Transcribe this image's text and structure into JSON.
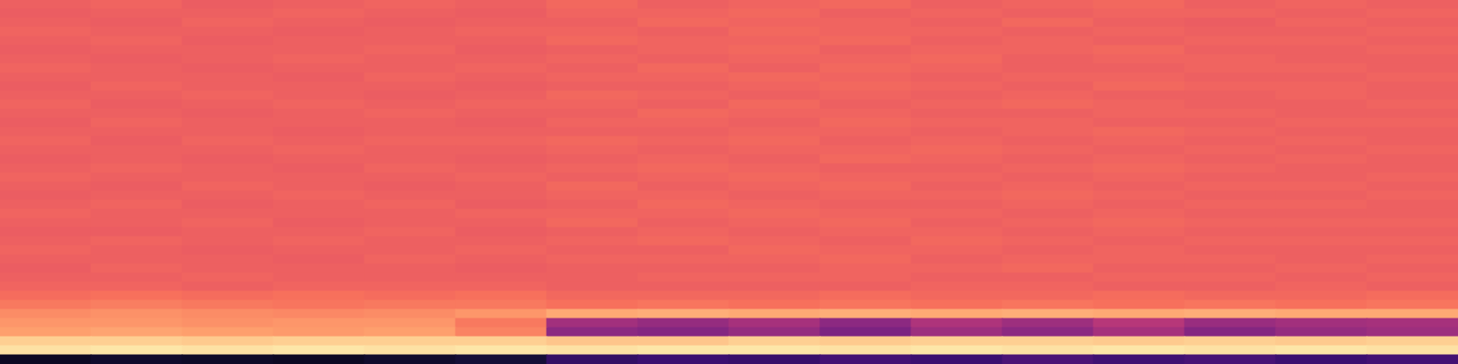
{
  "chart_data": {
    "type": "heatmap",
    "tick_labels": false,
    "color_range": [
      0,
      1
    ],
    "cells": [
      [
        0.66,
        0.67,
        0.65,
        0.66,
        0.67,
        0.66,
        0.68,
        0.66,
        0.67,
        0.68,
        0.66,
        0.67,
        0.68,
        0.66,
        0.67,
        0.66
      ],
      [
        0.65,
        0.66,
        0.66,
        0.67,
        0.66,
        0.65,
        0.67,
        0.67,
        0.68,
        0.66,
        0.67,
        0.66,
        0.67,
        0.67,
        0.66,
        0.67
      ],
      [
        0.66,
        0.65,
        0.67,
        0.66,
        0.65,
        0.66,
        0.66,
        0.68,
        0.67,
        0.67,
        0.66,
        0.68,
        0.66,
        0.65,
        0.67,
        0.66
      ],
      [
        0.67,
        0.66,
        0.66,
        0.65,
        0.66,
        0.67,
        0.67,
        0.66,
        0.68,
        0.67,
        0.67,
        0.66,
        0.67,
        0.66,
        0.66,
        0.67
      ],
      [
        0.66,
        0.67,
        0.65,
        0.66,
        0.66,
        0.66,
        0.68,
        0.67,
        0.67,
        0.68,
        0.66,
        0.67,
        0.66,
        0.67,
        0.67,
        0.66
      ],
      [
        0.65,
        0.66,
        0.66,
        0.66,
        0.67,
        0.65,
        0.66,
        0.67,
        0.68,
        0.66,
        0.67,
        0.67,
        0.68,
        0.66,
        0.66,
        0.67
      ],
      [
        0.66,
        0.65,
        0.66,
        0.67,
        0.66,
        0.66,
        0.67,
        0.66,
        0.67,
        0.67,
        0.68,
        0.66,
        0.67,
        0.67,
        0.66,
        0.66
      ],
      [
        0.67,
        0.66,
        0.65,
        0.66,
        0.66,
        0.67,
        0.66,
        0.68,
        0.66,
        0.68,
        0.67,
        0.66,
        0.66,
        0.67,
        0.67,
        0.66
      ],
      [
        0.66,
        0.66,
        0.66,
        0.65,
        0.67,
        0.66,
        0.67,
        0.67,
        0.68,
        0.67,
        0.66,
        0.67,
        0.67,
        0.66,
        0.66,
        0.67
      ],
      [
        0.65,
        0.67,
        0.66,
        0.66,
        0.66,
        0.65,
        0.66,
        0.66,
        0.67,
        0.68,
        0.67,
        0.66,
        0.68,
        0.67,
        0.67,
        0.66
      ],
      [
        0.66,
        0.66,
        0.67,
        0.66,
        0.65,
        0.66,
        0.68,
        0.67,
        0.66,
        0.67,
        0.66,
        0.67,
        0.66,
        0.66,
        0.67,
        0.66
      ],
      [
        0.67,
        0.65,
        0.66,
        0.67,
        0.66,
        0.67,
        0.67,
        0.66,
        0.68,
        0.66,
        0.67,
        0.68,
        0.67,
        0.66,
        0.66,
        0.67
      ],
      [
        0.66,
        0.66,
        0.65,
        0.66,
        0.67,
        0.66,
        0.66,
        0.68,
        0.67,
        0.67,
        0.66,
        0.66,
        0.67,
        0.67,
        0.66,
        0.66
      ],
      [
        0.65,
        0.67,
        0.66,
        0.66,
        0.66,
        0.65,
        0.67,
        0.67,
        0.66,
        0.68,
        0.67,
        0.67,
        0.66,
        0.66,
        0.67,
        0.67
      ],
      [
        0.66,
        0.66,
        0.66,
        0.65,
        0.66,
        0.66,
        0.66,
        0.66,
        0.67,
        0.67,
        0.66,
        0.67,
        0.68,
        0.67,
        0.66,
        0.66
      ],
      [
        0.67,
        0.65,
        0.67,
        0.66,
        0.67,
        0.67,
        0.68,
        0.67,
        0.68,
        0.66,
        0.67,
        0.66,
        0.67,
        0.66,
        0.67,
        0.66
      ],
      [
        0.66,
        0.66,
        0.66,
        0.67,
        0.66,
        0.66,
        0.67,
        0.66,
        0.67,
        0.67,
        0.68,
        0.67,
        0.66,
        0.67,
        0.66,
        0.67
      ],
      [
        0.65,
        0.66,
        0.65,
        0.66,
        0.66,
        0.65,
        0.66,
        0.67,
        0.66,
        0.68,
        0.67,
        0.66,
        0.67,
        0.66,
        0.67,
        0.66
      ],
      [
        0.66,
        0.67,
        0.66,
        0.65,
        0.67,
        0.66,
        0.67,
        0.68,
        0.67,
        0.66,
        0.66,
        0.67,
        0.68,
        0.67,
        0.66,
        0.66
      ],
      [
        0.67,
        0.66,
        0.66,
        0.66,
        0.66,
        0.67,
        0.66,
        0.67,
        0.68,
        0.67,
        0.67,
        0.66,
        0.67,
        0.66,
        0.66,
        0.67
      ],
      [
        0.66,
        0.65,
        0.67,
        0.66,
        0.65,
        0.66,
        0.68,
        0.66,
        0.67,
        0.68,
        0.66,
        0.67,
        0.66,
        0.67,
        0.67,
        0.66
      ],
      [
        0.65,
        0.66,
        0.66,
        0.67,
        0.66,
        0.66,
        0.67,
        0.67,
        0.66,
        0.67,
        0.67,
        0.68,
        0.67,
        0.66,
        0.66,
        0.67
      ],
      [
        0.66,
        0.67,
        0.65,
        0.66,
        0.67,
        0.65,
        0.66,
        0.68,
        0.67,
        0.66,
        0.66,
        0.67,
        0.66,
        0.67,
        0.67,
        0.66
      ],
      [
        0.67,
        0.66,
        0.66,
        0.66,
        0.66,
        0.67,
        0.67,
        0.67,
        0.68,
        0.67,
        0.67,
        0.66,
        0.67,
        0.66,
        0.66,
        0.66
      ],
      [
        0.66,
        0.66,
        0.67,
        0.65,
        0.66,
        0.66,
        0.68,
        0.66,
        0.67,
        0.68,
        0.66,
        0.67,
        0.68,
        0.67,
        0.67,
        0.67
      ],
      [
        0.65,
        0.65,
        0.66,
        0.66,
        0.67,
        0.65,
        0.66,
        0.67,
        0.66,
        0.67,
        0.67,
        0.66,
        0.67,
        0.66,
        0.66,
        0.66
      ],
      [
        0.66,
        0.67,
        0.66,
        0.67,
        0.66,
        0.66,
        0.67,
        0.68,
        0.67,
        0.66,
        0.68,
        0.67,
        0.66,
        0.67,
        0.67,
        0.67
      ],
      [
        0.67,
        0.66,
        0.65,
        0.66,
        0.66,
        0.67,
        0.66,
        0.66,
        0.68,
        0.67,
        0.67,
        0.66,
        0.67,
        0.66,
        0.66,
        0.66
      ],
      [
        0.66,
        0.66,
        0.66,
        0.65,
        0.67,
        0.66,
        0.67,
        0.67,
        0.67,
        0.68,
        0.66,
        0.67,
        0.67,
        0.67,
        0.66,
        0.67
      ],
      [
        0.65,
        0.67,
        0.66,
        0.66,
        0.66,
        0.65,
        0.66,
        0.66,
        0.66,
        0.67,
        0.67,
        0.68,
        0.66,
        0.66,
        0.67,
        0.66
      ],
      [
        0.66,
        0.66,
        0.67,
        0.66,
        0.66,
        0.66,
        0.66,
        0.67,
        0.67,
        0.67,
        0.66,
        0.66,
        0.67,
        0.67,
        0.66,
        0.67
      ],
      [
        0.67,
        0.67,
        0.66,
        0.67,
        0.67,
        0.67,
        0.66,
        0.66,
        0.66,
        0.66,
        0.67,
        0.67,
        0.66,
        0.66,
        0.67,
        0.66
      ],
      [
        0.69,
        0.7,
        0.69,
        0.7,
        0.69,
        0.7,
        0.68,
        0.68,
        0.68,
        0.69,
        0.68,
        0.68,
        0.69,
        0.68,
        0.68,
        0.69
      ],
      [
        0.72,
        0.73,
        0.72,
        0.71,
        0.72,
        0.72,
        0.7,
        0.71,
        0.7,
        0.71,
        0.7,
        0.71,
        0.7,
        0.71,
        0.7,
        0.71
      ],
      [
        0.76,
        0.77,
        0.76,
        0.75,
        0.76,
        0.78,
        0.82,
        0.83,
        0.82,
        0.83,
        0.82,
        0.83,
        0.82,
        0.83,
        0.82,
        0.82
      ],
      [
        0.78,
        0.78,
        0.77,
        0.78,
        0.78,
        0.72,
        0.45,
        0.42,
        0.46,
        0.4,
        0.48,
        0.44,
        0.5,
        0.43,
        0.45,
        0.46
      ],
      [
        0.8,
        0.81,
        0.8,
        0.79,
        0.8,
        0.74,
        0.4,
        0.38,
        0.42,
        0.36,
        0.44,
        0.4,
        0.46,
        0.38,
        0.42,
        0.44
      ],
      [
        0.9,
        0.9,
        0.89,
        0.9,
        0.9,
        0.9,
        0.88,
        0.88,
        0.9,
        0.89,
        0.9,
        0.9,
        0.89,
        0.9,
        0.89,
        0.9
      ],
      [
        0.94,
        0.95,
        0.94,
        0.95,
        0.94,
        0.95,
        0.94,
        0.95,
        0.95,
        0.94,
        0.95,
        0.94,
        0.95,
        0.94,
        0.95,
        0.94
      ],
      [
        0.06,
        0.08,
        0.07,
        0.06,
        0.08,
        0.1,
        0.18,
        0.2,
        0.19,
        0.22,
        0.2,
        0.24,
        0.21,
        0.23,
        0.2,
        0.22
      ]
    ]
  }
}
